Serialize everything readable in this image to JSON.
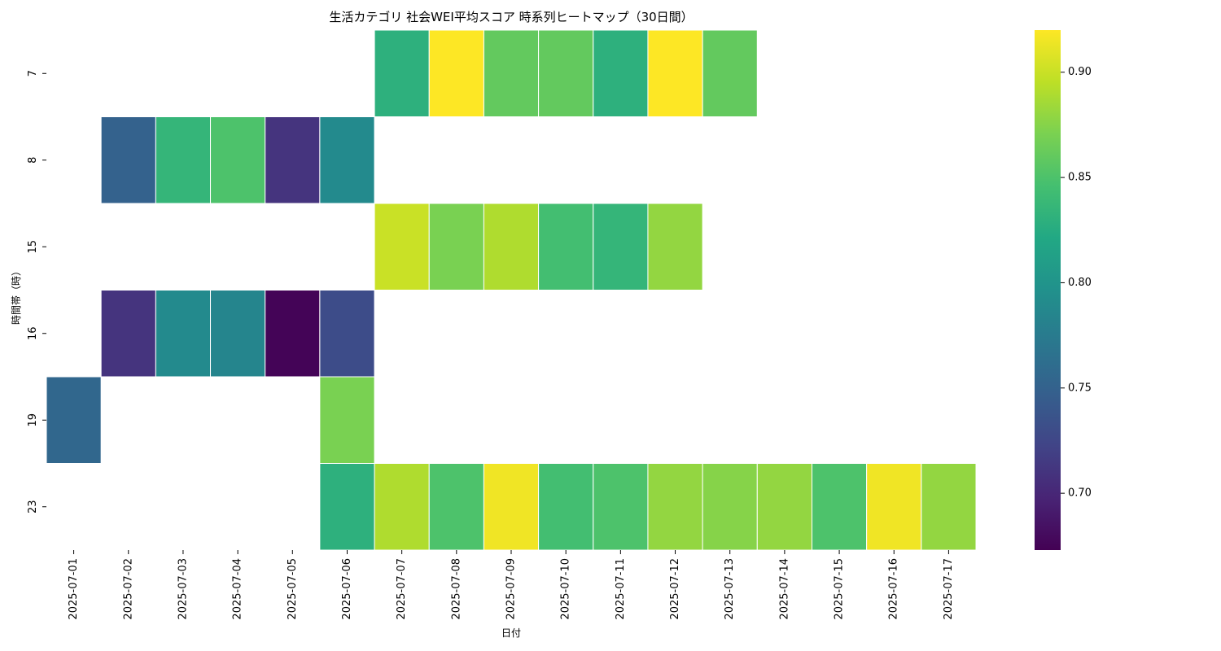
{
  "chart_data": {
    "type": "heatmap",
    "title": "生活カテゴリ 社会WEI平均スコア 時系列ヒートマップ（30日間）",
    "xlabel": "日付",
    "ylabel": "時間帯（時）",
    "colormap": "viridis",
    "x": [
      "2025-07-01",
      "2025-07-02",
      "2025-07-03",
      "2025-07-04",
      "2025-07-05",
      "2025-07-06",
      "2025-07-07",
      "2025-07-08",
      "2025-07-09",
      "2025-07-10",
      "2025-07-11",
      "2025-07-12",
      "2025-07-13",
      "2025-07-14",
      "2025-07-15",
      "2025-07-16",
      "2025-07-17"
    ],
    "y": [
      "7",
      "8",
      "15",
      "16",
      "19",
      "23"
    ],
    "values": [
      [
        null,
        null,
        null,
        null,
        null,
        null,
        0.83,
        0.92,
        0.86,
        0.86,
        0.83,
        0.92,
        0.86,
        null,
        null,
        null,
        null
      ],
      [
        null,
        0.75,
        0.835,
        0.85,
        0.71,
        0.79,
        null,
        null,
        null,
        null,
        null,
        null,
        null,
        null,
        null,
        null,
        null
      ],
      [
        null,
        null,
        null,
        null,
        null,
        null,
        0.9,
        0.87,
        0.89,
        0.845,
        0.835,
        0.88,
        null,
        null,
        null,
        null,
        null
      ],
      [
        null,
        0.71,
        0.79,
        0.785,
        0.675,
        0.73,
        null,
        null,
        null,
        null,
        null,
        null,
        null,
        null,
        null,
        null,
        null
      ],
      [
        0.755,
        null,
        null,
        null,
        null,
        0.87,
        null,
        null,
        null,
        null,
        null,
        null,
        null,
        null,
        null,
        null,
        null
      ],
      [
        null,
        null,
        null,
        null,
        null,
        0.83,
        0.89,
        0.85,
        0.915,
        0.845,
        0.85,
        0.88,
        0.875,
        0.88,
        0.85,
        0.915,
        0.88
      ]
    ],
    "vmin": 0.673,
    "vmax": 0.92,
    "colorbar_ticks": [
      0.7,
      0.75,
      0.8,
      0.85,
      0.9
    ],
    "colorbar_tick_labels": [
      "0.70",
      "0.75",
      "0.80",
      "0.85",
      "0.90"
    ]
  }
}
